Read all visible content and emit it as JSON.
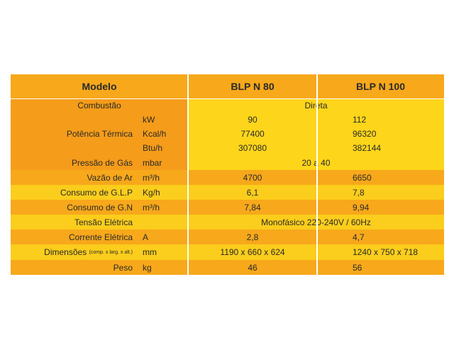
{
  "header": {
    "modelo": "Modelo",
    "model_a": "BLP N 80",
    "model_b": "BLP N 100"
  },
  "rows": {
    "combustao": {
      "label": "Combustão",
      "value": "Direta"
    },
    "potencia": {
      "label": "Potência Térmica",
      "units": [
        "kW",
        "Kcal/h",
        "Btu/h"
      ],
      "a": [
        "90",
        "77400",
        "307080"
      ],
      "b": [
        "112",
        "96320",
        "382144"
      ]
    },
    "pressao": {
      "label": "Pressão de Gás",
      "unit": "mbar",
      "value": "20 a 40"
    },
    "vazao": {
      "label": "Vazão de Ar",
      "unit": "m³/h",
      "a": "4700",
      "b": "6650"
    },
    "glp": {
      "label": "Consumo de G.L.P",
      "unit": "Kg/h",
      "a": "6,1",
      "b": "7,8"
    },
    "gn": {
      "label": "Consumo de G.N",
      "unit": "m³/h",
      "a": "7,84",
      "b": "9,94"
    },
    "tensao": {
      "label": "Tensão Elétrica",
      "value": "Monofásico 220-240V / 60Hz"
    },
    "corrente": {
      "label": "Corrente Elétrica",
      "unit": "A",
      "a": "2,8",
      "b": "4,7"
    },
    "dimensoes": {
      "label": "Dimensões",
      "label_note": "(comp. x larg. x alt.)",
      "unit": "mm",
      "a": "1190 x 660 x 624",
      "b": "1240 x 750 x 718"
    },
    "peso": {
      "label": "Peso",
      "unit": "kg",
      "a": "46",
      "b": "56"
    }
  }
}
